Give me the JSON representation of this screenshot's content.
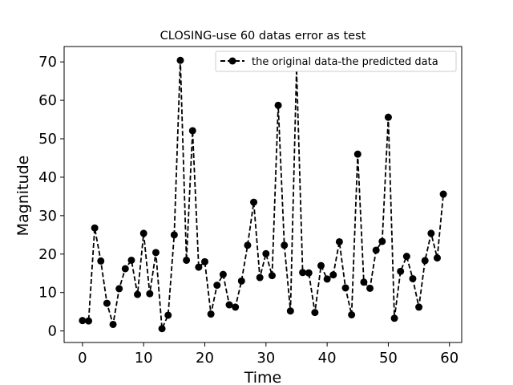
{
  "chart_data": {
    "type": "line",
    "title": "CLOSING-use 60 datas error as test",
    "xlabel": "Time",
    "ylabel": "Magnitude",
    "xlim": [
      -3,
      62
    ],
    "ylim": [
      -3,
      74
    ],
    "xticks": [
      0,
      10,
      20,
      30,
      40,
      50,
      60
    ],
    "yticks": [
      0,
      10,
      20,
      30,
      40,
      50,
      60,
      70
    ],
    "grid": false,
    "legend_position": "top-right",
    "series": [
      {
        "name": "the original data-the predicted data",
        "color": "#000000",
        "line_style": "dashed",
        "marker": "circle",
        "x": [
          0,
          1,
          2,
          3,
          4,
          5,
          6,
          7,
          8,
          9,
          10,
          11,
          12,
          13,
          14,
          15,
          16,
          17,
          18,
          19,
          20,
          21,
          22,
          23,
          24,
          25,
          26,
          27,
          28,
          29,
          30,
          31,
          32,
          33,
          34,
          35,
          36,
          37,
          38,
          39,
          40,
          41,
          42,
          43,
          44,
          45,
          46,
          47,
          48,
          49,
          50,
          51,
          52,
          53,
          54,
          55,
          56,
          57,
          58,
          59
        ],
        "values": [
          2.7,
          2.6,
          26.8,
          18.2,
          7.2,
          1.7,
          11.0,
          16.2,
          18.4,
          9.5,
          25.4,
          9.7,
          20.4,
          0.6,
          4.1,
          25.0,
          70.4,
          18.4,
          52.1,
          16.6,
          18.0,
          4.4,
          11.9,
          14.7,
          6.8,
          6.2,
          13.0,
          22.3,
          33.5,
          13.9,
          20.1,
          14.4,
          58.7,
          22.3,
          5.2,
          68.3,
          15.2,
          15.1,
          4.8,
          17.0,
          13.5,
          14.6,
          23.2,
          11.2,
          4.2,
          46.0,
          12.7,
          11.1,
          21.0,
          23.3,
          55.6,
          3.3,
          15.5,
          19.4,
          13.6,
          6.2,
          18.3,
          25.4,
          19.0,
          35.6
        ]
      }
    ]
  }
}
